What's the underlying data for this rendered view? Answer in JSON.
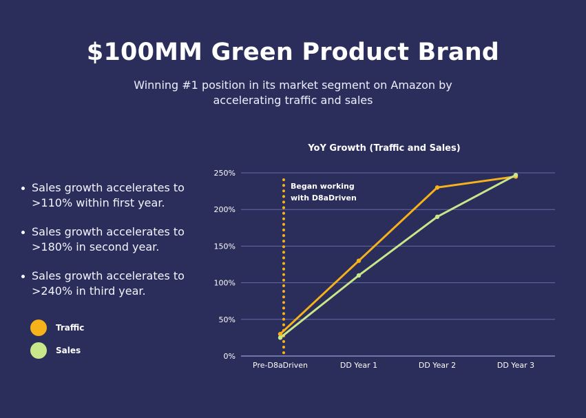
{
  "header": {
    "title": "$100MM Green Product Brand",
    "subtitle": "Winning #1 position in its market segment on Amazon by accelerating traffic and sales"
  },
  "bullets": [
    "Sales growth accelerates to >110% within first year.",
    "Sales growth accelerates to >180% in second year.",
    "Sales growth accelerates to >240% in third year."
  ],
  "legend": [
    {
      "label": "Traffic",
      "color": "#f6b21b"
    },
    {
      "label": "Sales",
      "color": "#c7e78a"
    }
  ],
  "chart_data": {
    "type": "line",
    "title": "YoY Growth (Traffic and Sales)",
    "categories": [
      "Pre-D8aDriven",
      "DD Year 1",
      "DD Year 2",
      "DD Year 3"
    ],
    "yticks": [
      "0%",
      "50%",
      "100%",
      "150%",
      "200%",
      "250%"
    ],
    "ylim": [
      0,
      250
    ],
    "series": [
      {
        "name": "Traffic",
        "values": [
          30,
          130,
          230,
          245
        ],
        "color": "#f6b21b"
      },
      {
        "name": "Sales",
        "values": [
          25,
          110,
          190,
          247
        ],
        "color": "#c7e78a"
      }
    ],
    "annotation": {
      "lines": [
        "Began working",
        "with D8aDriven"
      ],
      "x": 0.5,
      "color": "#f6b21b"
    },
    "grid": true,
    "legend_position": "left"
  }
}
